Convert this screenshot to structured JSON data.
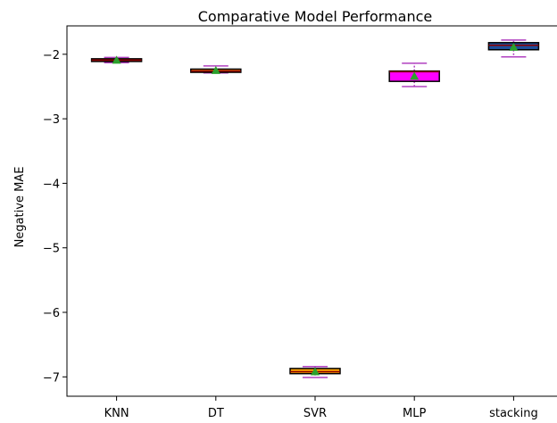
{
  "chart_data": {
    "type": "box",
    "title": "Comparative Model Performance",
    "xlabel": "",
    "ylabel": "Negative MAE",
    "ylim": [
      -7.3,
      -1.56
    ],
    "yticks": [
      -2,
      -3,
      -4,
      -5,
      -6,
      -7
    ],
    "ytick_labels": [
      "−2",
      "−3",
      "−4",
      "−5",
      "−6",
      "−7"
    ],
    "grid": false,
    "categories": [
      "KNN",
      "DT",
      "SVR",
      "MLP",
      "stacking"
    ],
    "boxes": [
      {
        "label": "KNN",
        "whisker_low": -2.13,
        "q1": -2.11,
        "median": -2.09,
        "q3": -2.07,
        "whisker_high": -2.05,
        "mean": -2.09,
        "fill": "#ff0000"
      },
      {
        "label": "DT",
        "whisker_low": -2.29,
        "q1": -2.28,
        "median": -2.26,
        "q3": -2.23,
        "whisker_high": -2.18,
        "mean": -2.25,
        "fill": "#ff7f0e"
      },
      {
        "label": "SVR",
        "whisker_low": -7.01,
        "q1": -6.95,
        "median": -6.92,
        "q3": -6.87,
        "whisker_high": -6.84,
        "mean": -6.92,
        "fill": "#ffa500"
      },
      {
        "label": "MLP",
        "whisker_low": -2.5,
        "q1": -2.42,
        "median": -2.27,
        "q3": -2.26,
        "whisker_high": -2.14,
        "mean": -2.34,
        "fill": "#ff00ff"
      },
      {
        "label": "stacking",
        "whisker_low": -2.04,
        "q1": -1.93,
        "median": -1.86,
        "q3": -1.82,
        "whisker_high": -1.78,
        "mean": -1.89,
        "fill": "#1f4e99"
      }
    ],
    "colors": {
      "whisker": "#b040c0",
      "median": "#8b0000",
      "box_edge": "#000000",
      "mean_marker": "#2ca02c"
    }
  }
}
